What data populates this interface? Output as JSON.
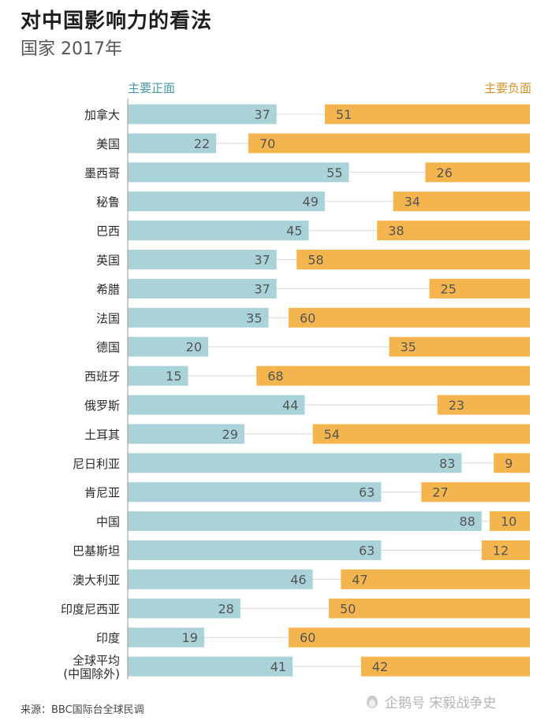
{
  "title": "对中国影响力的看法",
  "subtitle": "国家 2017年",
  "legend": {
    "positive": "主要正面",
    "negative": "主要负面"
  },
  "source": "来源：BBC国际台全球民调",
  "watermark": "企鹅号 宋毅战争史",
  "colors": {
    "positive": "#a9d3d8",
    "negative": "#f4b54e",
    "positive_text": "#3a8a94",
    "negative_text": "#c78420"
  },
  "chart_data": {
    "type": "bar",
    "categories": [
      "加拿大",
      "美国",
      "墨西哥",
      "秘鲁",
      "巴西",
      "英国",
      "希腊",
      "法国",
      "德国",
      "西班牙",
      "俄罗斯",
      "土耳其",
      "尼日利亚",
      "肯尼亚",
      "中国",
      "巴基斯坦",
      "澳大利亚",
      "印度尼西亚",
      "印度",
      "全球平均\n(中国除外)"
    ],
    "series": [
      {
        "name": "主要正面",
        "values": [
          37,
          22,
          55,
          49,
          45,
          37,
          37,
          35,
          20,
          15,
          44,
          29,
          83,
          63,
          88,
          63,
          46,
          28,
          19,
          41
        ]
      },
      {
        "name": "主要负面",
        "values": [
          51,
          70,
          26,
          34,
          38,
          58,
          25,
          60,
          35,
          68,
          23,
          54,
          9,
          27,
          10,
          12,
          47,
          50,
          60,
          42
        ]
      }
    ],
    "xlim": [
      0,
      100
    ]
  }
}
